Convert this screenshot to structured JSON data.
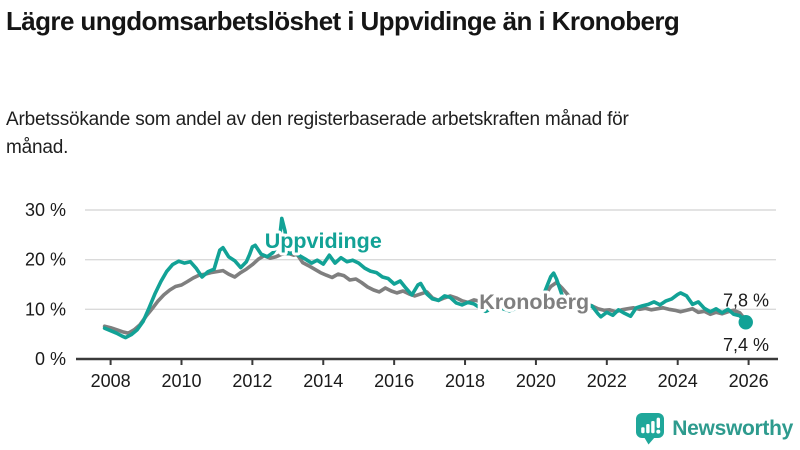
{
  "header": {
    "title": "Lägre ungdomsarbetslöshet i Uppvidinge än i Kronoberg",
    "subtitle": "Arbetssökande som andel av den registerbaserade arbetskraften månad för månad."
  },
  "chart_data": {
    "type": "line",
    "title": "Lägre ungdomsarbetslöshet i Uppvidinge än i Kronoberg",
    "xlabel": "",
    "ylabel": "",
    "grid": true,
    "legend_position": "inline-labels",
    "xlim": [
      2007.6,
      2026.45
    ],
    "ylim": [
      0,
      30
    ],
    "yticks": [
      {
        "value": 0,
        "label": "0 %"
      },
      {
        "value": 10,
        "label": "10 %"
      },
      {
        "value": 20,
        "label": "20 %"
      },
      {
        "value": 30,
        "label": "30 %"
      }
    ],
    "xticks": [
      {
        "value": 2008,
        "label": "2008"
      },
      {
        "value": 2010,
        "label": "2010"
      },
      {
        "value": 2012,
        "label": "2012"
      },
      {
        "value": 2014,
        "label": "2014"
      },
      {
        "value": 2016,
        "label": "2016"
      },
      {
        "value": 2018,
        "label": "2018"
      },
      {
        "value": 2020,
        "label": "2020"
      },
      {
        "value": 2022,
        "label": "2022"
      },
      {
        "value": 2024,
        "label": "2024"
      },
      {
        "value": 2026,
        "label": "2026"
      }
    ],
    "series": [
      {
        "name": "Uppvidinge",
        "color": "#12A296",
        "end_label": "7,4 %",
        "end_label_side": "below",
        "end_dot": true,
        "label_anchor": {
          "x": 2014.0,
          "y": 23.8
        },
        "points": [
          [
            2007.83,
            6.2
          ],
          [
            2008.0,
            5.7
          ],
          [
            2008.17,
            5.2
          ],
          [
            2008.33,
            4.6
          ],
          [
            2008.42,
            4.3
          ],
          [
            2008.58,
            4.9
          ],
          [
            2008.75,
            5.9
          ],
          [
            2008.92,
            7.6
          ],
          [
            2009.08,
            10.2
          ],
          [
            2009.25,
            13.1
          ],
          [
            2009.42,
            15.6
          ],
          [
            2009.58,
            17.6
          ],
          [
            2009.75,
            19.0
          ],
          [
            2009.92,
            19.7
          ],
          [
            2010.08,
            19.3
          ],
          [
            2010.25,
            19.6
          ],
          [
            2010.42,
            18.2
          ],
          [
            2010.58,
            16.5
          ],
          [
            2010.75,
            17.6
          ],
          [
            2010.92,
            18.1
          ],
          [
            2011.0,
            20.0
          ],
          [
            2011.08,
            21.9
          ],
          [
            2011.17,
            22.4
          ],
          [
            2011.33,
            20.6
          ],
          [
            2011.5,
            19.8
          ],
          [
            2011.67,
            18.4
          ],
          [
            2011.83,
            19.6
          ],
          [
            2011.92,
            21.0
          ],
          [
            2012.0,
            22.6
          ],
          [
            2012.08,
            22.9
          ],
          [
            2012.25,
            21.1
          ],
          [
            2012.42,
            20.6
          ],
          [
            2012.58,
            21.4
          ],
          [
            2012.75,
            23.3
          ],
          [
            2012.83,
            28.3
          ],
          [
            2012.92,
            25.8
          ],
          [
            2013.0,
            21.2
          ],
          [
            2013.17,
            21.4
          ],
          [
            2013.33,
            20.8
          ],
          [
            2013.5,
            20.1
          ],
          [
            2013.67,
            19.3
          ],
          [
            2013.83,
            19.9
          ],
          [
            2014.0,
            19.1
          ],
          [
            2014.17,
            20.9
          ],
          [
            2014.33,
            19.3
          ],
          [
            2014.5,
            20.4
          ],
          [
            2014.67,
            19.6
          ],
          [
            2014.83,
            19.9
          ],
          [
            2015.0,
            19.3
          ],
          [
            2015.17,
            18.3
          ],
          [
            2015.33,
            17.7
          ],
          [
            2015.5,
            17.4
          ],
          [
            2015.67,
            16.5
          ],
          [
            2015.83,
            16.2
          ],
          [
            2016.0,
            15.1
          ],
          [
            2016.17,
            15.7
          ],
          [
            2016.33,
            14.3
          ],
          [
            2016.5,
            12.9
          ],
          [
            2016.67,
            14.9
          ],
          [
            2016.75,
            15.2
          ],
          [
            2016.92,
            13.1
          ],
          [
            2017.08,
            12.1
          ],
          [
            2017.25,
            11.8
          ],
          [
            2017.42,
            12.7
          ],
          [
            2017.58,
            12.4
          ],
          [
            2017.75,
            11.3
          ],
          [
            2017.92,
            10.9
          ],
          [
            2018.08,
            11.4
          ],
          [
            2018.25,
            11.1
          ],
          [
            2018.42,
            10.3
          ],
          [
            2018.58,
            9.6
          ],
          [
            2018.75,
            10.1
          ],
          [
            2018.92,
            10.5
          ],
          [
            2019.08,
            10.1
          ],
          [
            2019.25,
            9.7
          ],
          [
            2019.42,
            10.1
          ],
          [
            2019.58,
            10.4
          ],
          [
            2019.75,
            9.9
          ],
          [
            2019.92,
            10.3
          ],
          [
            2020.08,
            11.1
          ],
          [
            2020.25,
            13.6
          ],
          [
            2020.42,
            16.6
          ],
          [
            2020.5,
            17.3
          ],
          [
            2020.58,
            16.1
          ],
          [
            2020.75,
            12.6
          ],
          [
            2020.92,
            12.2
          ],
          [
            2021.08,
            10.9
          ],
          [
            2021.25,
            11.4
          ],
          [
            2021.42,
            10.5
          ],
          [
            2021.58,
            10.7
          ],
          [
            2021.75,
            9.1
          ],
          [
            2021.83,
            8.5
          ],
          [
            2022.0,
            9.4
          ],
          [
            2022.17,
            8.8
          ],
          [
            2022.33,
            9.9
          ],
          [
            2022.5,
            9.2
          ],
          [
            2022.67,
            8.6
          ],
          [
            2022.83,
            10.3
          ],
          [
            2023.0,
            10.7
          ],
          [
            2023.17,
            11.0
          ],
          [
            2023.33,
            11.5
          ],
          [
            2023.5,
            10.9
          ],
          [
            2023.67,
            11.7
          ],
          [
            2023.83,
            12.1
          ],
          [
            2024.0,
            13.0
          ],
          [
            2024.08,
            13.3
          ],
          [
            2024.25,
            12.7
          ],
          [
            2024.42,
            11.0
          ],
          [
            2024.58,
            11.5
          ],
          [
            2024.75,
            10.2
          ],
          [
            2024.92,
            9.5
          ],
          [
            2025.08,
            10.1
          ],
          [
            2025.25,
            9.3
          ],
          [
            2025.42,
            10.0
          ],
          [
            2025.58,
            9.0
          ],
          [
            2025.75,
            8.7
          ],
          [
            2025.92,
            7.4
          ]
        ]
      },
      {
        "name": "Kronoberg",
        "color": "#7F7F7F",
        "end_label": "7,8 %",
        "end_label_side": "above",
        "end_dot": false,
        "label_anchor": {
          "x": 2019.95,
          "y": 11.5
        },
        "points": [
          [
            2007.83,
            6.6
          ],
          [
            2008.0,
            6.3
          ],
          [
            2008.17,
            5.9
          ],
          [
            2008.33,
            5.5
          ],
          [
            2008.5,
            5.2
          ],
          [
            2008.67,
            5.9
          ],
          [
            2008.83,
            6.9
          ],
          [
            2009.0,
            8.6
          ],
          [
            2009.17,
            10.1
          ],
          [
            2009.33,
            11.6
          ],
          [
            2009.5,
            12.9
          ],
          [
            2009.67,
            13.9
          ],
          [
            2009.83,
            14.6
          ],
          [
            2010.0,
            14.9
          ],
          [
            2010.17,
            15.6
          ],
          [
            2010.33,
            16.3
          ],
          [
            2010.5,
            16.9
          ],
          [
            2010.67,
            17.1
          ],
          [
            2010.83,
            17.4
          ],
          [
            2011.0,
            17.6
          ],
          [
            2011.17,
            17.8
          ],
          [
            2011.33,
            17.1
          ],
          [
            2011.5,
            16.5
          ],
          [
            2011.67,
            17.4
          ],
          [
            2011.83,
            18.1
          ],
          [
            2012.0,
            19.0
          ],
          [
            2012.17,
            20.1
          ],
          [
            2012.33,
            20.8
          ],
          [
            2012.5,
            20.3
          ],
          [
            2012.67,
            20.6
          ],
          [
            2012.83,
            21.1
          ],
          [
            2013.0,
            21.3
          ],
          [
            2013.17,
            20.9
          ],
          [
            2013.25,
            21.2
          ],
          [
            2013.42,
            19.4
          ],
          [
            2013.58,
            18.8
          ],
          [
            2013.75,
            18.1
          ],
          [
            2013.92,
            17.4
          ],
          [
            2014.08,
            16.9
          ],
          [
            2014.25,
            16.4
          ],
          [
            2014.42,
            17.1
          ],
          [
            2014.58,
            16.8
          ],
          [
            2014.75,
            15.9
          ],
          [
            2014.92,
            16.1
          ],
          [
            2015.08,
            15.4
          ],
          [
            2015.25,
            14.5
          ],
          [
            2015.42,
            13.9
          ],
          [
            2015.58,
            13.5
          ],
          [
            2015.75,
            14.3
          ],
          [
            2015.92,
            13.7
          ],
          [
            2016.08,
            13.3
          ],
          [
            2016.25,
            13.7
          ],
          [
            2016.42,
            13.1
          ],
          [
            2016.58,
            12.7
          ],
          [
            2016.75,
            13.1
          ],
          [
            2016.92,
            13.5
          ],
          [
            2017.08,
            12.3
          ],
          [
            2017.25,
            11.8
          ],
          [
            2017.42,
            12.3
          ],
          [
            2017.58,
            12.7
          ],
          [
            2017.75,
            12.3
          ],
          [
            2017.92,
            11.7
          ],
          [
            2018.08,
            11.4
          ],
          [
            2018.25,
            11.9
          ],
          [
            2018.42,
            11.6
          ],
          [
            2018.58,
            11.3
          ],
          [
            2018.75,
            10.9
          ],
          [
            2018.92,
            10.6
          ],
          [
            2019.08,
            10.3
          ],
          [
            2019.25,
            10.1
          ],
          [
            2019.42,
            10.4
          ],
          [
            2019.58,
            10.6
          ],
          [
            2019.75,
            10.3
          ],
          [
            2019.92,
            10.5
          ],
          [
            2020.08,
            11.2
          ],
          [
            2020.25,
            12.8
          ],
          [
            2020.42,
            14.6
          ],
          [
            2020.58,
            15.4
          ],
          [
            2020.75,
            14.2
          ],
          [
            2020.92,
            12.8
          ],
          [
            2021.08,
            12.1
          ],
          [
            2021.25,
            11.7
          ],
          [
            2021.42,
            11.2
          ],
          [
            2021.58,
            10.7
          ],
          [
            2021.75,
            10.1
          ],
          [
            2021.92,
            9.8
          ],
          [
            2022.08,
            9.9
          ],
          [
            2022.25,
            9.5
          ],
          [
            2022.42,
            9.9
          ],
          [
            2022.58,
            10.1
          ],
          [
            2022.75,
            10.3
          ],
          [
            2022.92,
            10.0
          ],
          [
            2023.08,
            10.2
          ],
          [
            2023.25,
            9.9
          ],
          [
            2023.42,
            10.1
          ],
          [
            2023.58,
            10.3
          ],
          [
            2023.75,
            10.0
          ],
          [
            2023.92,
            9.8
          ],
          [
            2024.08,
            9.5
          ],
          [
            2024.25,
            9.8
          ],
          [
            2024.42,
            10.1
          ],
          [
            2024.58,
            9.4
          ],
          [
            2024.75,
            9.6
          ],
          [
            2024.92,
            9.0
          ],
          [
            2025.08,
            9.4
          ],
          [
            2025.25,
            9.1
          ],
          [
            2025.42,
            9.5
          ],
          [
            2025.58,
            9.8
          ],
          [
            2025.75,
            9.3
          ],
          [
            2025.92,
            7.8
          ]
        ]
      }
    ]
  },
  "footer": {
    "brand": "Newsworthy",
    "brand_icon": "newsworthy-bubble-barchart-icon",
    "brand_color": "#2E9B8E",
    "icon_color": "#1FA79A"
  },
  "colors": {
    "accent_teal": "#12A296",
    "neutral_gray": "#7F7F7F",
    "grid": "#DADADA",
    "axis": "#3A3A3A",
    "text_dark": "#1A1A1A"
  }
}
